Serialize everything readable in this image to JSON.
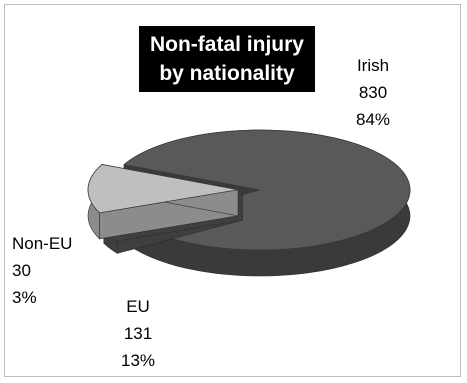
{
  "chart_data": {
    "type": "pie",
    "title": [
      "Non-fatal injury",
      "by nationality"
    ],
    "slices": [
      {
        "name": "Irish",
        "value": 830,
        "percent": "84%",
        "color": "#595959",
        "side": "#3a3a3a"
      },
      {
        "name": "Non-EU",
        "value": 30,
        "percent": "3%",
        "color": "#7a7a7a",
        "side": "#3f3f3f"
      },
      {
        "name": "EU",
        "value": 131,
        "percent": "13%",
        "color": "#bfbfbf",
        "side": "#8c8c8c"
      }
    ]
  }
}
